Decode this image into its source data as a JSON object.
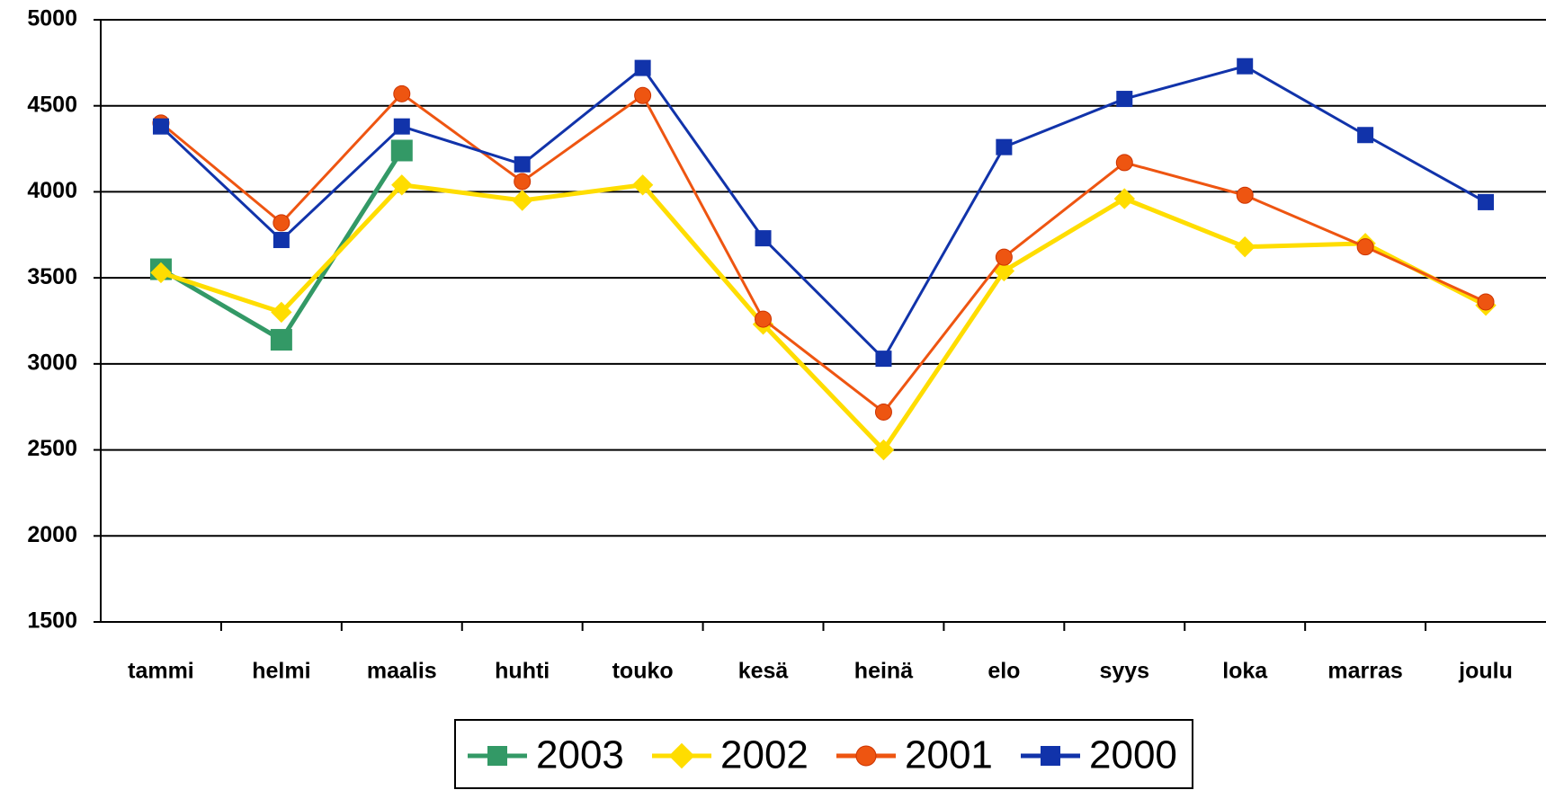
{
  "chart_data": {
    "type": "line",
    "categories": [
      "tammi",
      "helmi",
      "maalis",
      "huhti",
      "touko",
      "kesä",
      "heinä",
      "elo",
      "syys",
      "loka",
      "marras",
      "joulu"
    ],
    "series": [
      {
        "name": "2003",
        "color": "#339966",
        "marker": "square",
        "values": [
          3550,
          3140,
          4240,
          null,
          null,
          null,
          null,
          null,
          null,
          null,
          null,
          null
        ]
      },
      {
        "name": "2002",
        "color": "#ffdd00",
        "marker": "diamond",
        "values": [
          3530,
          3300,
          4040,
          3950,
          4040,
          3230,
          2500,
          3540,
          3960,
          3680,
          3700,
          3340
        ]
      },
      {
        "name": "2001",
        "color": "#ee5511",
        "marker": "circle",
        "values": [
          4400,
          3820,
          4570,
          4060,
          4560,
          3260,
          2720,
          3620,
          4170,
          3980,
          3680,
          3360
        ]
      },
      {
        "name": "2000",
        "color": "#1133aa",
        "marker": "square",
        "values": [
          4380,
          3720,
          4380,
          4160,
          4720,
          3730,
          3030,
          4260,
          4540,
          4730,
          4330,
          3940
        ]
      }
    ],
    "ylim": [
      1500,
      5000
    ],
    "yticks": [
      1500,
      2000,
      2500,
      3000,
      3500,
      4000,
      4500,
      5000
    ],
    "grid": true,
    "legend": "bottom"
  }
}
